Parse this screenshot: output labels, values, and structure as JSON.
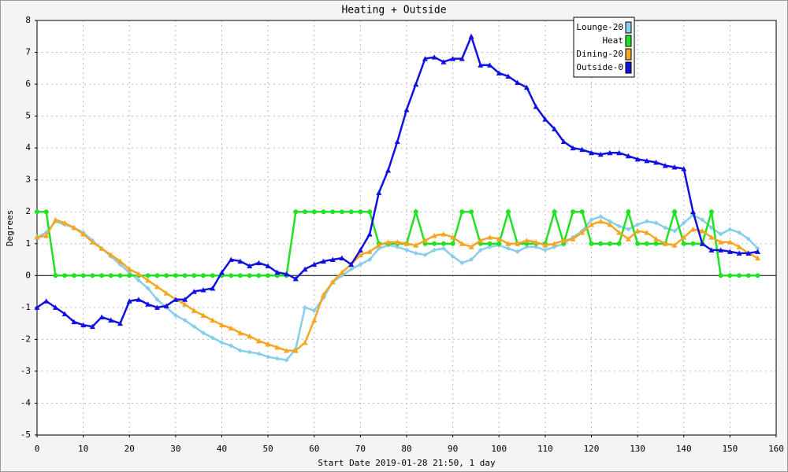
{
  "chart_data": {
    "type": "line",
    "title": "Heating + Outside",
    "xlabel": "Start Date 2019-01-28 21:50, 1 day",
    "ylabel": "Degrees",
    "x": [
      0,
      2,
      4,
      6,
      8,
      10,
      12,
      14,
      16,
      18,
      20,
      22,
      24,
      26,
      28,
      30,
      32,
      34,
      36,
      38,
      40,
      42,
      44,
      46,
      48,
      50,
      52,
      54,
      56,
      58,
      60,
      62,
      64,
      66,
      68,
      70,
      72,
      74,
      76,
      78,
      80,
      82,
      84,
      86,
      88,
      90,
      92,
      94,
      96,
      98,
      100,
      102,
      104,
      106,
      108,
      110,
      112,
      114,
      116,
      118,
      120,
      122,
      124,
      126,
      128,
      130,
      132,
      134,
      136,
      138,
      140,
      142,
      144,
      146,
      148,
      150,
      152,
      154,
      156
    ],
    "series": [
      {
        "name": "Lounge-20",
        "color": "#87ceeb",
        "marker": "diamond",
        "values": [
          1.2,
          1.35,
          1.7,
          1.6,
          1.5,
          1.35,
          1.1,
          0.85,
          0.6,
          0.35,
          0.1,
          -0.15,
          -0.4,
          -0.75,
          -1.0,
          -1.25,
          -1.4,
          -1.6,
          -1.8,
          -1.95,
          -2.1,
          -2.2,
          -2.35,
          -2.4,
          -2.45,
          -2.55,
          -2.6,
          -2.65,
          -2.3,
          -1.0,
          -1.1,
          -0.7,
          -0.2,
          0.0,
          0.2,
          0.35,
          0.5,
          0.85,
          0.95,
          0.9,
          0.8,
          0.7,
          0.65,
          0.8,
          0.85,
          0.6,
          0.4,
          0.5,
          0.8,
          0.9,
          0.95,
          0.85,
          0.75,
          0.9,
          0.9,
          0.8,
          0.9,
          1.0,
          1.2,
          1.4,
          1.75,
          1.85,
          1.7,
          1.55,
          1.45,
          1.6,
          1.7,
          1.65,
          1.5,
          1.4,
          1.65,
          1.9,
          1.75,
          1.5,
          1.3,
          1.45,
          1.35,
          1.15,
          0.85
        ]
      },
      {
        "name": "Heat",
        "color": "#22e022",
        "marker": "circle",
        "values": [
          2,
          2,
          0,
          0,
          0,
          0,
          0,
          0,
          0,
          0,
          0,
          0,
          0,
          0,
          0,
          0,
          0,
          0,
          0,
          0,
          0,
          0,
          0,
          0,
          0,
          0,
          0,
          0,
          2,
          2,
          2,
          2,
          2,
          2,
          2,
          2,
          2,
          1,
          1,
          1,
          1,
          2,
          1,
          1,
          1,
          1,
          2,
          2,
          1,
          1,
          1,
          2,
          1,
          1,
          1,
          1,
          2,
          1,
          2,
          2,
          1,
          1,
          1,
          1,
          2,
          1,
          1,
          1,
          1,
          2,
          1,
          1,
          1,
          2,
          0,
          0,
          0,
          0,
          0
        ]
      },
      {
        "name": "Dining-20",
        "color": "#f5a623",
        "marker": "triangle",
        "values": [
          1.2,
          1.25,
          1.75,
          1.65,
          1.5,
          1.3,
          1.05,
          0.85,
          0.65,
          0.45,
          0.2,
          0.05,
          -0.15,
          -0.35,
          -0.55,
          -0.75,
          -0.9,
          -1.1,
          -1.25,
          -1.4,
          -1.55,
          -1.65,
          -1.8,
          -1.9,
          -2.05,
          -2.15,
          -2.25,
          -2.35,
          -2.35,
          -2.1,
          -1.4,
          -0.6,
          -0.2,
          0.1,
          0.35,
          0.65,
          0.75,
          0.95,
          1.05,
          1.05,
          1.0,
          0.95,
          1.1,
          1.25,
          1.3,
          1.2,
          1.0,
          0.9,
          1.1,
          1.2,
          1.15,
          1.0,
          1.0,
          1.1,
          1.05,
          0.95,
          1.0,
          1.1,
          1.15,
          1.35,
          1.6,
          1.7,
          1.6,
          1.35,
          1.15,
          1.4,
          1.35,
          1.15,
          1.0,
          0.95,
          1.2,
          1.45,
          1.4,
          1.2,
          1.05,
          1.05,
          0.9,
          0.7,
          0.55
        ]
      },
      {
        "name": "Outside-0",
        "color": "#1010e0",
        "marker": "triangle",
        "values": [
          -1.0,
          -0.8,
          -1.0,
          -1.2,
          -1.45,
          -1.55,
          -1.6,
          -1.3,
          -1.4,
          -1.5,
          -0.8,
          -0.75,
          -0.9,
          -1.0,
          -0.95,
          -0.75,
          -0.75,
          -0.5,
          -0.45,
          -0.4,
          0.1,
          0.5,
          0.45,
          0.3,
          0.4,
          0.3,
          0.1,
          0.05,
          -0.1,
          0.2,
          0.35,
          0.45,
          0.5,
          0.55,
          0.35,
          0.8,
          1.3,
          2.6,
          3.3,
          4.2,
          5.2,
          6.0,
          6.8,
          6.85,
          6.7,
          6.8,
          6.8,
          7.5,
          6.6,
          6.6,
          6.35,
          6.25,
          6.05,
          5.9,
          5.3,
          4.9,
          4.6,
          4.2,
          4.0,
          3.95,
          3.85,
          3.8,
          3.85,
          3.85,
          3.75,
          3.65,
          3.6,
          3.55,
          3.45,
          3.4,
          3.35,
          2.0,
          1.0,
          0.8,
          0.8,
          0.75,
          0.7,
          0.7,
          0.75
        ]
      }
    ],
    "xlim": [
      0,
      160
    ],
    "xticks": [
      0,
      10,
      20,
      30,
      40,
      50,
      60,
      70,
      80,
      90,
      100,
      110,
      120,
      130,
      140,
      150,
      160
    ],
    "ylim": [
      -5,
      8
    ],
    "yticks": [
      -5,
      -4,
      -3,
      -2,
      -1,
      0,
      1,
      2,
      3,
      4,
      5,
      6,
      7,
      8
    ],
    "grid": true,
    "legend": "top-right"
  }
}
